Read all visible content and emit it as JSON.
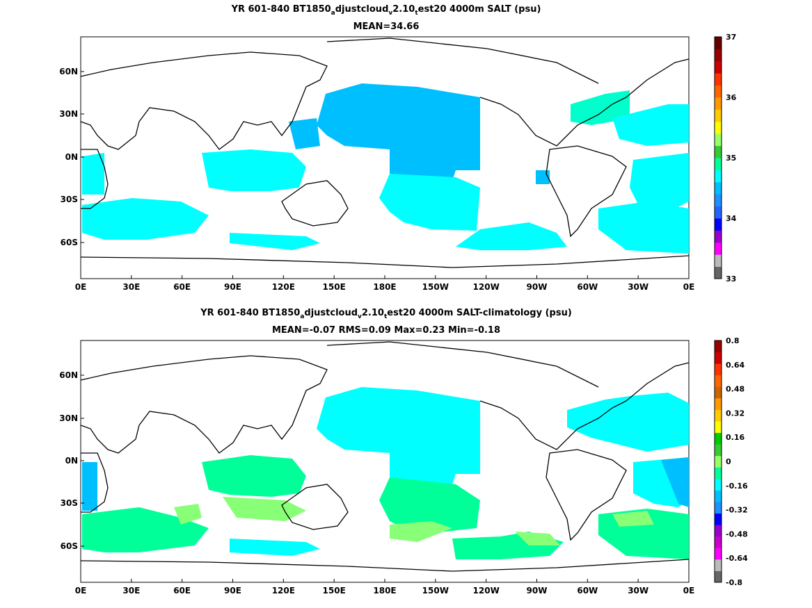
{
  "figure": {
    "panels": [
      {
        "title": {
          "parts": [
            {
              "text": "YR 601-840 BT1850"
            },
            {
              "text": "a",
              "sub": true
            },
            {
              "text": "djustcloud"
            },
            {
              "text": "v",
              "sub": true
            },
            {
              "text": "2.10"
            },
            {
              "text": "t",
              "sub": true
            },
            {
              "text": "est20 4000m SALT (psu)"
            }
          ]
        },
        "stats": "MEAN=34.66",
        "x_ticks": [
          "0E",
          "30E",
          "60E",
          "90E",
          "120E",
          "150E",
          "180E",
          "150W",
          "120W",
          "90W",
          "60W",
          "30W",
          "0E"
        ],
        "y_ticks": [
          "60N",
          "30N",
          "0N",
          "30S",
          "60S"
        ],
        "colorbar": {
          "range": [
            33,
            37
          ],
          "tick_labels": [
            "37",
            "36",
            "35",
            "34",
            "33"
          ],
          "colors": [
            "#666666",
            "#bbbbbb",
            "#ff00ff",
            "#9900cc",
            "#0000ff",
            "#2266ff",
            "#1e90ff",
            "#00bfff",
            "#00ffff",
            "#00ff99",
            "#33cc33",
            "#99ff66",
            "#ffff00",
            "#ffcc00",
            "#ff9900",
            "#ff6600",
            "#ff3300",
            "#cc0000",
            "#990000",
            "#660000"
          ]
        }
      },
      {
        "title": {
          "parts": [
            {
              "text": "YR 601-840 BT1850"
            },
            {
              "text": "a",
              "sub": true
            },
            {
              "text": "djustcloud"
            },
            {
              "text": "v",
              "sub": true
            },
            {
              "text": "2.10"
            },
            {
              "text": "t",
              "sub": true
            },
            {
              "text": "est20 4000m SALT-climatology (psu)"
            }
          ]
        },
        "stats": "MEAN=-0.07   RMS=0.09   Max=0.23   Min=-0.18",
        "x_ticks": [
          "0E",
          "30E",
          "60E",
          "90E",
          "120E",
          "150E",
          "180E",
          "150W",
          "120W",
          "90W",
          "60W",
          "30W",
          "0E"
        ],
        "y_ticks": [
          "60N",
          "30N",
          "0N",
          "30S",
          "60S"
        ],
        "colorbar": {
          "range": [
            -0.8,
            0.8
          ],
          "tick_labels": [
            "0.8",
            "0.64",
            "0.48",
            "0.32",
            "0.16",
            "0",
            "-0.16",
            "-0.32",
            "-0.48",
            "-0.64",
            "-0.8"
          ],
          "colors": [
            "#666666",
            "#bbbbbb",
            "#ff00ff",
            "#cc00cc",
            "#9900cc",
            "#0000ff",
            "#1e90ff",
            "#00bfff",
            "#00ffff",
            "#00ff99",
            "#99ff66",
            "#33cc33",
            "#00cc00",
            "#ffff00",
            "#ffcc00",
            "#ff9900",
            "#cc6600",
            "#ff6600",
            "#ff3300",
            "#cc0000",
            "#990000"
          ]
        }
      }
    ]
  }
}
